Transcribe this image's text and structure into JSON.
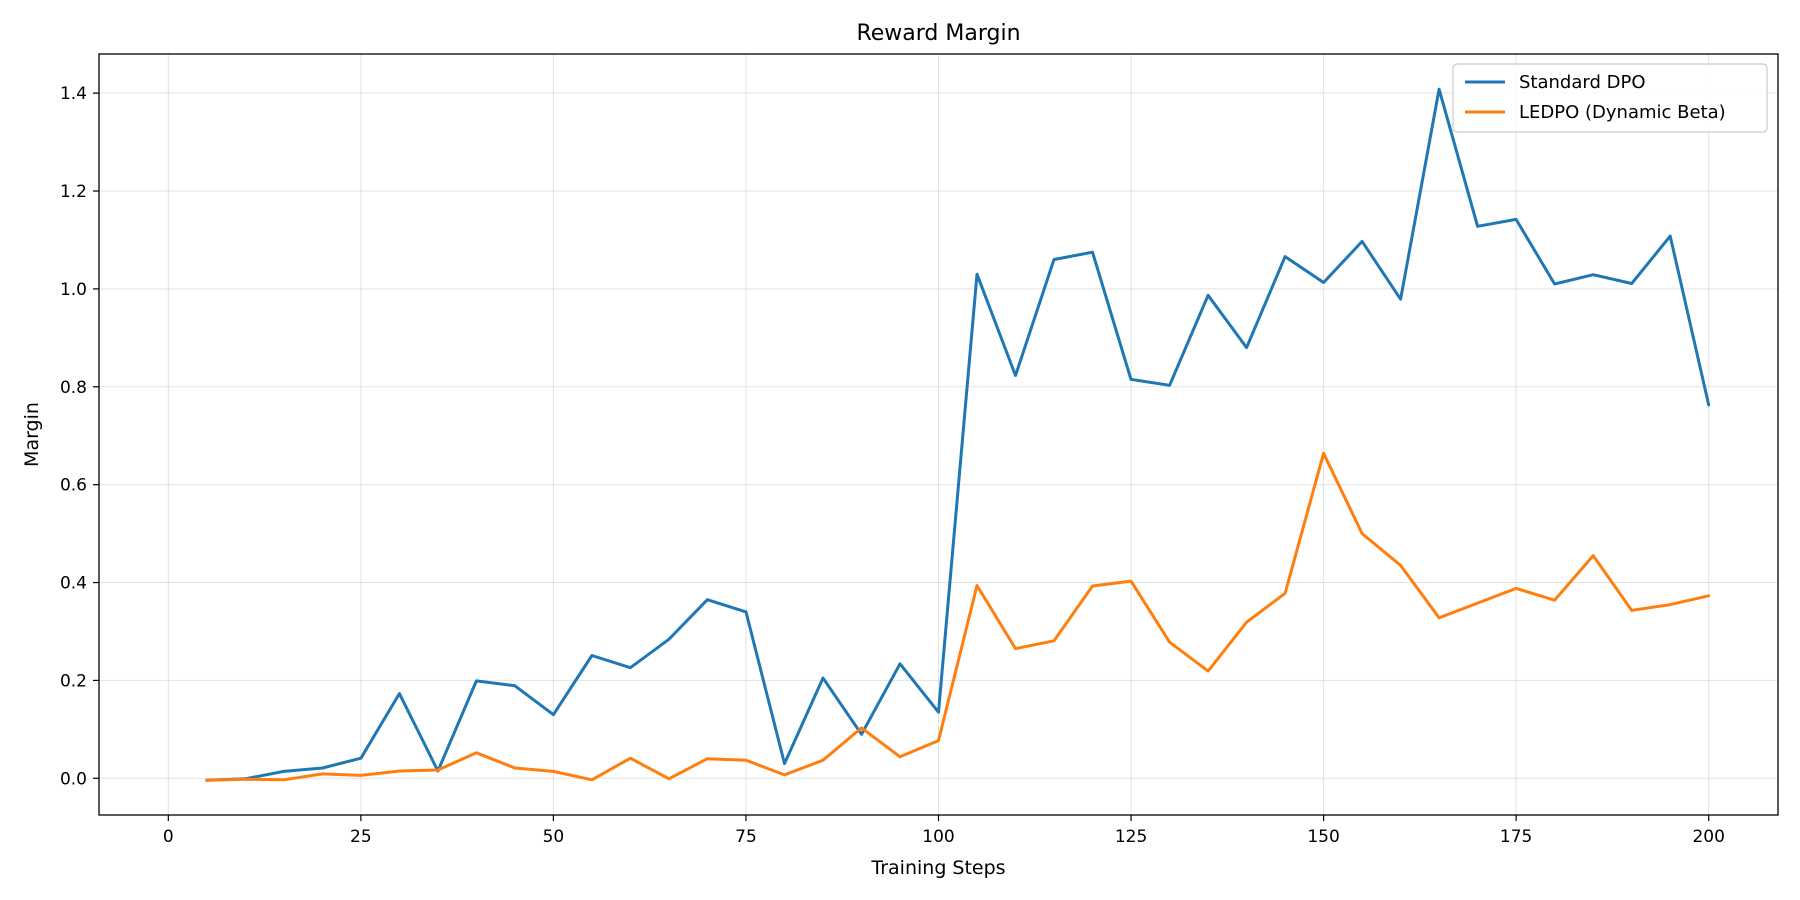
{
  "chart_data": {
    "type": "line",
    "title": "Reward Margin",
    "xlabel": "Training Steps",
    "ylabel": "Margin",
    "xlim": [
      -9,
      209
    ],
    "ylim": [
      -0.075,
      1.48
    ],
    "xticks": [
      0,
      25,
      50,
      75,
      100,
      125,
      150,
      175,
      200
    ],
    "yticks": [
      0.0,
      0.2,
      0.4,
      0.6,
      0.8,
      1.0,
      1.2,
      1.4
    ],
    "grid": true,
    "legend_position": "top-right",
    "x": [
      5,
      10,
      15,
      20,
      25,
      30,
      35,
      40,
      45,
      50,
      55,
      60,
      65,
      70,
      75,
      80,
      85,
      90,
      95,
      100,
      105,
      110,
      115,
      120,
      125,
      130,
      135,
      140,
      145,
      150,
      155,
      160,
      165,
      170,
      175,
      180,
      185,
      190,
      195,
      200
    ],
    "series": [
      {
        "name": "Standard DPO",
        "color": "#1f77b4",
        "values": [
          -0.004,
          -0.001,
          0.014,
          0.021,
          0.041,
          0.173,
          0.015,
          0.199,
          0.189,
          0.13,
          0.251,
          0.226,
          0.284,
          0.365,
          0.34,
          0.03,
          0.205,
          0.09,
          0.234,
          0.135,
          1.03,
          0.823,
          1.06,
          1.075,
          0.815,
          0.803,
          0.987,
          0.88,
          1.066,
          1.013,
          1.097,
          0.979,
          1.408,
          1.128,
          1.142,
          1.01,
          1.029,
          1.011,
          1.108,
          0.763
        ]
      },
      {
        "name": "LEDPO (Dynamic Beta)",
        "color": "#ff7f0e",
        "values": [
          -0.004,
          -0.002,
          -0.003,
          0.009,
          0.006,
          0.015,
          0.017,
          0.052,
          0.021,
          0.014,
          -0.003,
          0.041,
          -0.001,
          0.04,
          0.037,
          0.007,
          0.037,
          0.103,
          0.044,
          0.077,
          0.394,
          0.265,
          0.281,
          0.393,
          0.403,
          0.278,
          0.219,
          0.319,
          0.378,
          0.664,
          0.5,
          0.435,
          0.328,
          0.358,
          0.388,
          0.364,
          0.455,
          0.343,
          0.355,
          0.373
        ]
      }
    ]
  }
}
